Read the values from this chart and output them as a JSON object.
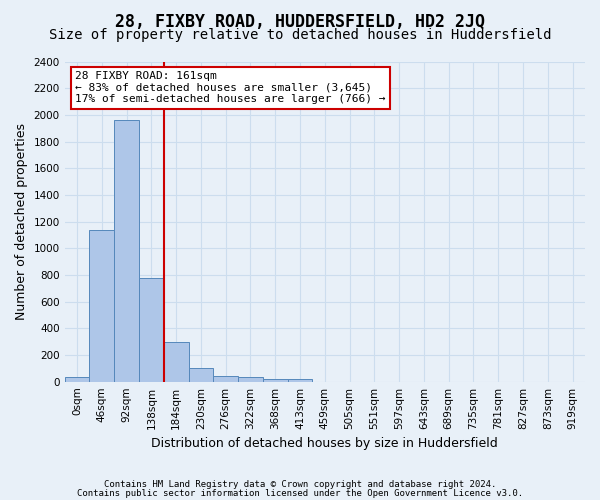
{
  "title": "28, FIXBY ROAD, HUDDERSFIELD, HD2 2JQ",
  "subtitle": "Size of property relative to detached houses in Huddersfield",
  "xlabel": "Distribution of detached houses by size in Huddersfield",
  "ylabel": "Number of detached properties",
  "footnote1": "Contains HM Land Registry data © Crown copyright and database right 2024.",
  "footnote2": "Contains public sector information licensed under the Open Government Licence v3.0.",
  "bin_labels": [
    "0sqm",
    "46sqm",
    "92sqm",
    "138sqm",
    "184sqm",
    "230sqm",
    "276sqm",
    "322sqm",
    "368sqm",
    "413sqm",
    "459sqm",
    "505sqm",
    "551sqm",
    "597sqm",
    "643sqm",
    "689sqm",
    "735sqm",
    "781sqm",
    "827sqm",
    "873sqm",
    "919sqm"
  ],
  "bar_values": [
    35,
    1140,
    1960,
    780,
    300,
    105,
    45,
    38,
    22,
    18,
    0,
    0,
    0,
    0,
    0,
    0,
    0,
    0,
    0,
    0,
    0
  ],
  "bar_color": "#aec6e8",
  "bar_edge_color": "#5588bb",
  "ylim": [
    0,
    2400
  ],
  "yticks": [
    0,
    200,
    400,
    600,
    800,
    1000,
    1200,
    1400,
    1600,
    1800,
    2000,
    2200,
    2400
  ],
  "property_label": "28 FIXBY ROAD: 161sqm",
  "pct_smaller": "83% of detached houses are smaller (3,645)",
  "pct_larger": "17% of semi-detached houses are larger (766)",
  "vline_x": 3.5,
  "annotation_box_color": "#ffffff",
  "annotation_box_edge": "#cc0000",
  "vline_color": "#cc0000",
  "grid_color": "#ccddee",
  "bg_color": "#e8f0f8",
  "title_fontsize": 12,
  "subtitle_fontsize": 10,
  "tick_fontsize": 7.5,
  "ylabel_fontsize": 9,
  "xlabel_fontsize": 9,
  "annotation_fontsize": 8,
  "footnote_fontsize": 6.5
}
